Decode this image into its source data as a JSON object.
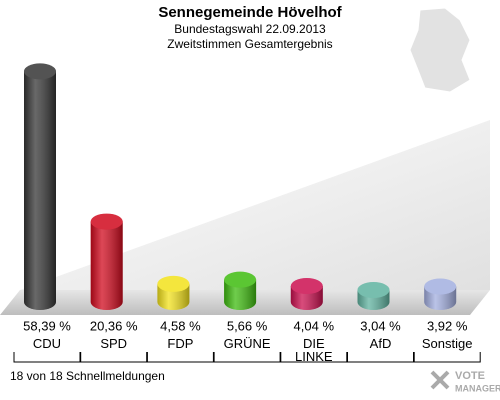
{
  "chart_data": {
    "type": "bar",
    "title": "Sennegemeinde Hövelhof",
    "subtitle": [
      "Bundestagswahl 22.09.2013",
      "Zweitstimmen Gesamtergebnis"
    ],
    "categories": [
      "CDU",
      "SPD",
      "FDP",
      "GRÜNE",
      "DIE LINKE",
      "AfD",
      "Sonstige"
    ],
    "values": [
      58.39,
      20.36,
      4.58,
      5.66,
      4.04,
      3.04,
      3.92
    ],
    "value_labels": [
      "58,39 %",
      "20,36 %",
      "4,58 %",
      "5,66 %",
      "4,04 %",
      "3,04 %",
      "3,92 %"
    ],
    "colors": [
      "#363636",
      "#d10a1e",
      "#f3e21c",
      "#3fbc10",
      "#cc1050",
      "#60b3a0",
      "#a3afe0"
    ],
    "footer": "18 von 18 Schnellmeldungen",
    "logo": [
      "VOTE",
      "MANAGER"
    ]
  }
}
